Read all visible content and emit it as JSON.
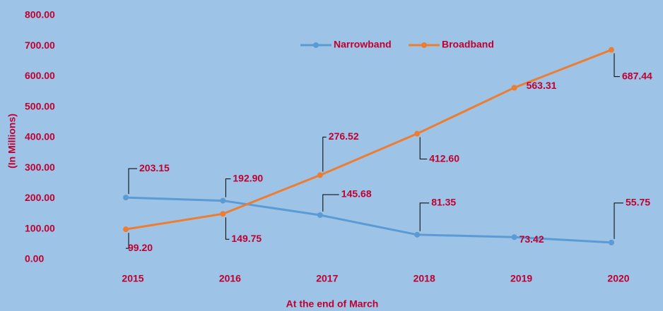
{
  "chart_data": {
    "type": "line",
    "x_label": "At the end of March",
    "y_label": "(In Millions)",
    "categories": [
      "2015",
      "2016",
      "2017",
      "2018",
      "2019",
      "2020"
    ],
    "series": [
      {
        "name": "Narrowband",
        "color": "#5b9bd5",
        "values": [
          203.15,
          192.9,
          145.68,
          81.35,
          73.42,
          55.75
        ],
        "value_labels": [
          "203.15",
          "192.90",
          "145.68",
          "81.35",
          "73.42",
          "55.75"
        ]
      },
      {
        "name": "Broadband",
        "color": "#ed7d31",
        "values": [
          99.2,
          149.75,
          276.52,
          412.6,
          563.31,
          687.44
        ],
        "value_labels": [
          "99.20",
          "149.75",
          "276.52",
          "412.60",
          "563.31",
          "687.44"
        ]
      }
    ],
    "ylim": [
      0,
      800
    ],
    "yticks": [
      {
        "value": 0,
        "label": "0.00"
      },
      {
        "value": 100,
        "label": "100.00"
      },
      {
        "value": 200,
        "label": "200.00"
      },
      {
        "value": 300,
        "label": "300.00"
      },
      {
        "value": 400,
        "label": "400.00"
      },
      {
        "value": 500,
        "label": "500.00"
      },
      {
        "value": 600,
        "label": "600.00"
      },
      {
        "value": 700,
        "label": "700.00"
      },
      {
        "value": 800,
        "label": "800.00"
      }
    ],
    "grid": false,
    "legend": "top"
  }
}
